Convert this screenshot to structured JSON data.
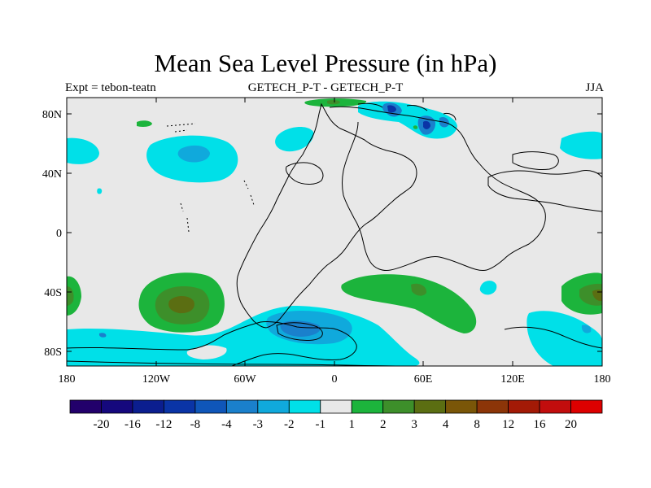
{
  "title": "Mean Sea Level Pressure (in hPa)",
  "subtitle_left": "Expt = tebon-teatn",
  "subtitle_center": "GETECH_P-T - GETECH_P-T",
  "subtitle_right": "JJA",
  "lat_labels": [
    "80N",
    "40N",
    "0",
    "40S",
    "80S"
  ],
  "lon_labels": [
    "180",
    "120W",
    "60W",
    "0",
    "60E",
    "120E",
    "180"
  ],
  "colorbar_labels": [
    "-20",
    "-16",
    "-12",
    "-8",
    "-4",
    "-3",
    "-2",
    "-1",
    "1",
    "2",
    "3",
    "4",
    "8",
    "12",
    "16",
    "20"
  ],
  "colorbar_colors": [
    "#22006b",
    "#15087d",
    "#0b1e8f",
    "#0a34a6",
    "#0f56b9",
    "#1a80cc",
    "#10a9dc",
    "#00e0e8",
    "#e8e8e8",
    "#1cb43c",
    "#3d8f2a",
    "#5b6e12",
    "#7a5608",
    "#8c3508",
    "#a31a06",
    "#c20d0d",
    "#dd0000"
  ],
  "colors": {
    "background_field": "#e8e8e8",
    "coastline": "#000000"
  }
}
